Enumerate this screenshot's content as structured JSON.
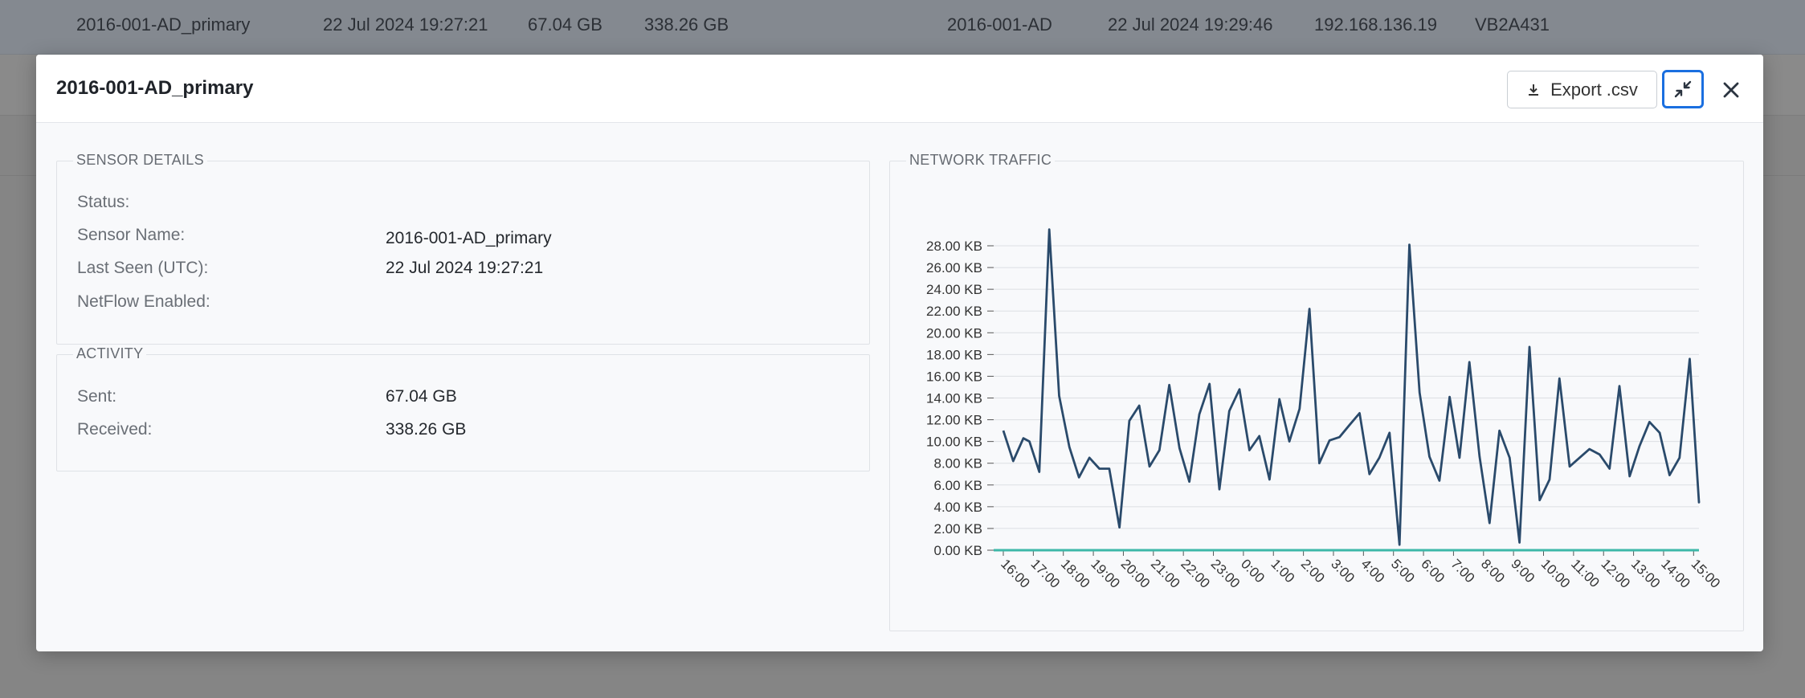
{
  "background_row": {
    "sensor_name": "2016-001-AD_primary",
    "last_seen": "22 Jul 2024 19:27:21",
    "sent": "67.04 GB",
    "received": "338.26 GB",
    "device_name": "2016-001-AD",
    "device_seen": "22 Jul 2024 19:29:46",
    "ip": "192.168.136.19",
    "serial": "VB2A431"
  },
  "modal": {
    "title": "2016-001-AD_primary",
    "export_label": "Export .csv",
    "colors": {
      "accent": "#1a6fe0",
      "line": "#2a4a6b",
      "baseline": "#3db8a8"
    }
  },
  "sensor_details": {
    "legend": "SENSOR DETAILS",
    "rows": [
      {
        "label": "Status:",
        "value": ""
      },
      {
        "label": "Sensor Name:",
        "value": "2016-001-AD_primary"
      },
      {
        "label": "Last Seen (UTC):",
        "value": "22 Jul 2024 19:27:21"
      },
      {
        "label": "NetFlow Enabled:",
        "value": ""
      }
    ]
  },
  "activity": {
    "legend": "ACTIVITY",
    "rows": [
      {
        "label": "Sent:",
        "value": "67.04 GB"
      },
      {
        "label": "Received:",
        "value": "338.26 GB"
      }
    ]
  },
  "network_traffic": {
    "legend": "NETWORK TRAFFIC"
  },
  "chart_data": {
    "type": "line",
    "title": "NETWORK TRAFFIC",
    "xlabel": "",
    "ylabel": "",
    "ylim": [
      0,
      28
    ],
    "y_unit": "KB",
    "y_ticks": [
      "0.00 KB",
      "2.00 KB",
      "4.00 KB",
      "6.00 KB",
      "8.00 KB",
      "10.00 KB",
      "12.00 KB",
      "14.00 KB",
      "16.00 KB",
      "18.00 KB",
      "20.00 KB",
      "22.00 KB",
      "24.00 KB",
      "26.00 KB",
      "28.00 KB"
    ],
    "x_ticks": [
      "16:00",
      "17:00",
      "18:00",
      "19:00",
      "20:00",
      "21:00",
      "22:00",
      "23:00",
      "0:00",
      "1:00",
      "2:00",
      "3:00",
      "4:00",
      "5:00",
      "6:00",
      "7:00",
      "8:00",
      "9:00",
      "10:00",
      "11:00",
      "12:00",
      "13:00",
      "14:00",
      "15:00"
    ],
    "grid": true,
    "series": [
      {
        "name": "traffic",
        "x": [
          0,
          0.33,
          0.67,
          0.87,
          1.2,
          1.53,
          1.86,
          2.2,
          2.52,
          2.87,
          3.2,
          3.53,
          3.87,
          4.2,
          4.53,
          4.87,
          5.2,
          5.53,
          5.87,
          6.2,
          6.53,
          6.87,
          7.2,
          7.53,
          7.87,
          8.2,
          8.53,
          8.87,
          9.2,
          9.53,
          9.87,
          10.2,
          10.53,
          10.87,
          11.2,
          11.53,
          11.87,
          12.2,
          12.53,
          12.87,
          13.2,
          13.53,
          13.87,
          14.2,
          14.53,
          14.87,
          15.2,
          15.53,
          15.87,
          16.2,
          16.53,
          16.87,
          17.2,
          17.53,
          17.87,
          18.2,
          18.53,
          18.87,
          19.2,
          19.53,
          19.87,
          20.2,
          20.53,
          20.87,
          21.2,
          21.53,
          21.87,
          22.2,
          22.53,
          22.87,
          23.2,
          23.53
        ],
        "values": [
          11,
          8.2,
          10.3,
          10,
          7.2,
          29.5,
          14.2,
          9.5,
          6.7,
          8.5,
          7.5,
          7.5,
          2.1,
          11.9,
          13.3,
          7.7,
          9.2,
          15.2,
          9.4,
          6.3,
          12.5,
          15.3,
          5.6,
          12.8,
          14.8,
          9.2,
          10.5,
          6.5,
          13.9,
          10,
          13,
          22.2,
          8,
          10.1,
          10.4,
          11.5,
          12.6,
          7,
          8.5,
          10.8,
          0.5,
          28.1,
          14.5,
          8.6,
          6.4,
          14.1,
          8.5,
          17.3,
          8.6,
          2.5,
          11,
          8.5,
          0.7,
          18.7,
          4.6,
          6.5,
          15.8,
          7.7,
          8.5,
          9.3,
          8.8,
          7.5,
          15.1,
          6.8,
          9.6,
          11.8,
          10.8,
          6.9,
          8.5,
          17.6,
          4.4,
          4.5
        ]
      }
    ]
  }
}
